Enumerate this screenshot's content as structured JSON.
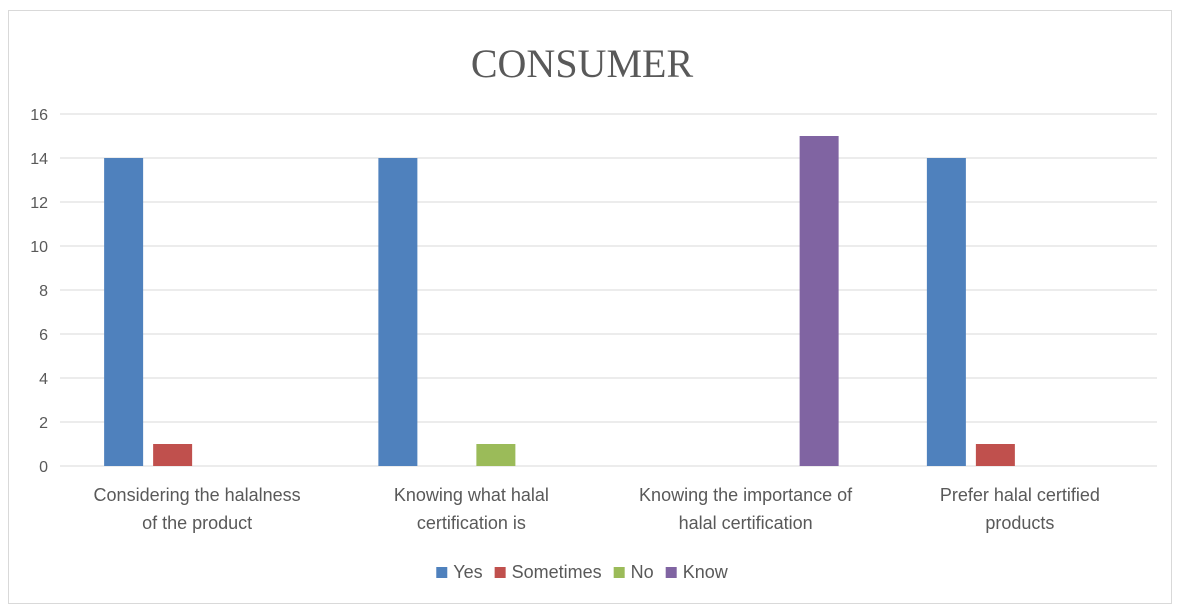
{
  "chart_data": {
    "type": "bar",
    "title": "CONSUMER",
    "xlabel": "",
    "ylabel": "",
    "ylim": [
      0,
      16
    ],
    "yticks": [
      0,
      2,
      4,
      6,
      8,
      10,
      12,
      14,
      16
    ],
    "grid": true,
    "legend_position": "bottom",
    "categories": [
      [
        "Considering the halalness",
        "of the product"
      ],
      [
        "Knowing what halal",
        "certification is"
      ],
      [
        "Knowing the importance of",
        "halal certification"
      ],
      [
        "Prefer halal certified",
        "products"
      ]
    ],
    "series": [
      {
        "name": "Yes",
        "color": "#4f81bd",
        "values": [
          14,
          14,
          null,
          14
        ]
      },
      {
        "name": "Sometimes",
        "color": "#c0504d",
        "values": [
          1,
          null,
          null,
          1
        ]
      },
      {
        "name": "No",
        "color": "#9bbb59",
        "values": [
          null,
          1,
          null,
          null
        ]
      },
      {
        "name": "Know",
        "color": "#8064a2",
        "values": [
          null,
          null,
          15,
          null
        ]
      }
    ]
  }
}
